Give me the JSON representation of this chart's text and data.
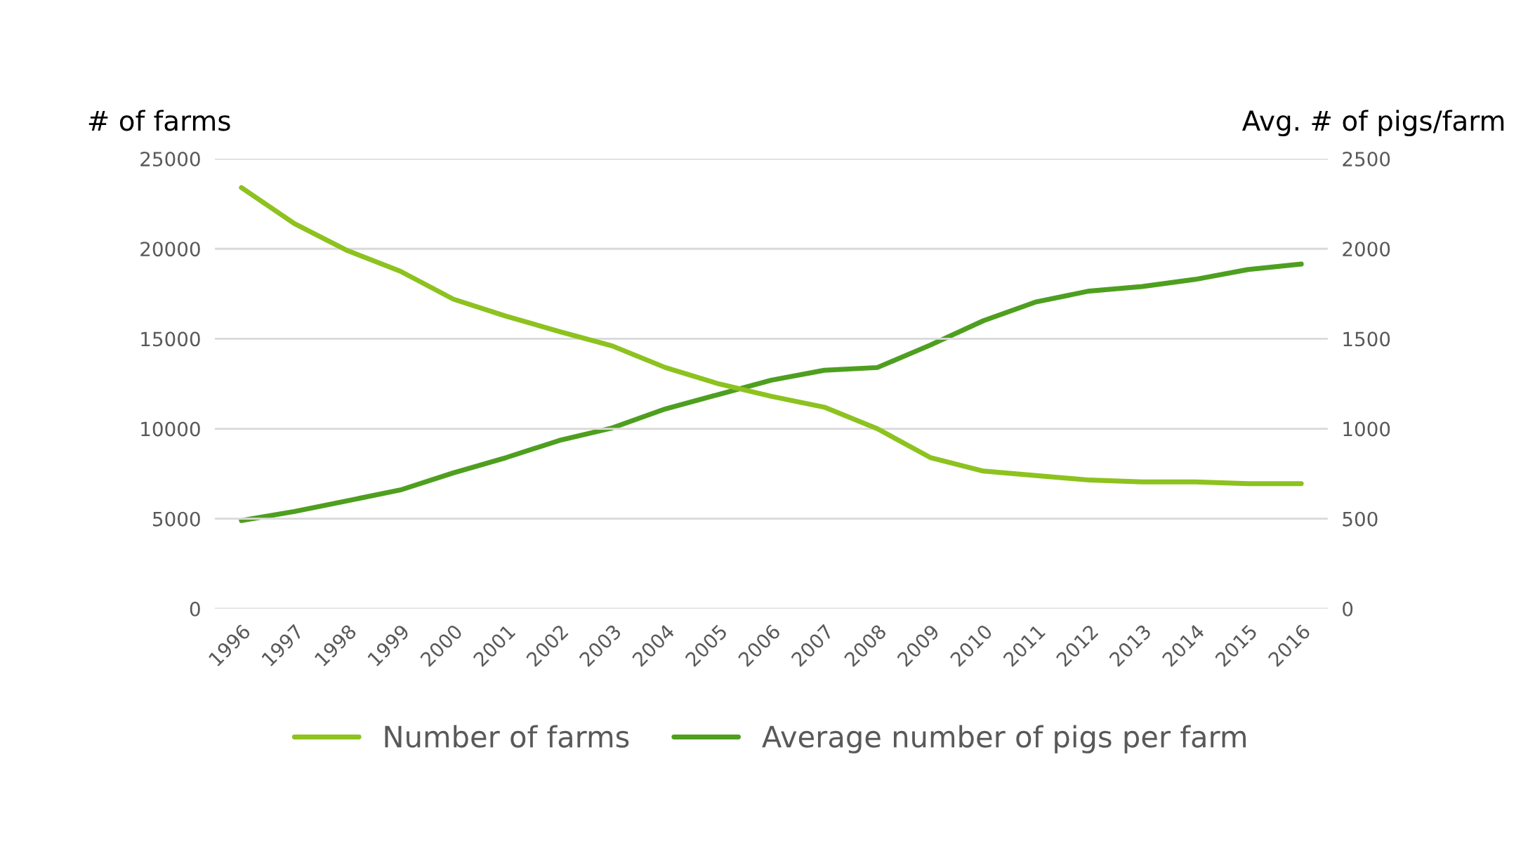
{
  "chart_data": {
    "type": "line",
    "ylabel": "# of farms",
    "y2label": "Avg. # of pigs/farm",
    "categories": [
      "1996",
      "1997",
      "1998",
      "1999",
      "2000",
      "2001",
      "2002",
      "2003",
      "2004",
      "2005",
      "2006",
      "2007",
      "2008",
      "2009",
      "2010",
      "2011",
      "2012",
      "2013",
      "2014",
      "2015",
      "2016"
    ],
    "series": [
      {
        "name": "Number of farms",
        "color": "#8dc21f",
        "values": [
          23400,
          21400,
          19900,
          18750,
          17200,
          16250,
          15400,
          14600,
          13400,
          12500,
          11800,
          11200,
          10000,
          8400,
          7650,
          7400,
          7150,
          7050,
          7050,
          6950,
          6950
        ]
      },
      {
        "name": "Average number of pigs per farm",
        "color": "#4e9f1f",
        "axis": "y2",
        "values": [
          490,
          540,
          600,
          660,
          755,
          840,
          935,
          1005,
          1110,
          1190,
          1270,
          1325,
          1340,
          1465,
          1600,
          1705,
          1765,
          1790,
          1830,
          1885,
          1915
        ]
      }
    ],
    "ylim": [
      0,
      25000
    ],
    "yticks": [
      0,
      5000,
      10000,
      15000,
      20000,
      25000
    ],
    "y2lim": [
      0,
      2500
    ],
    "y2ticks": [
      0,
      500,
      1000,
      1500,
      2000,
      2500
    ],
    "grid": "y",
    "legend": "bottom",
    "marker": "none",
    "line_style": "solid"
  }
}
